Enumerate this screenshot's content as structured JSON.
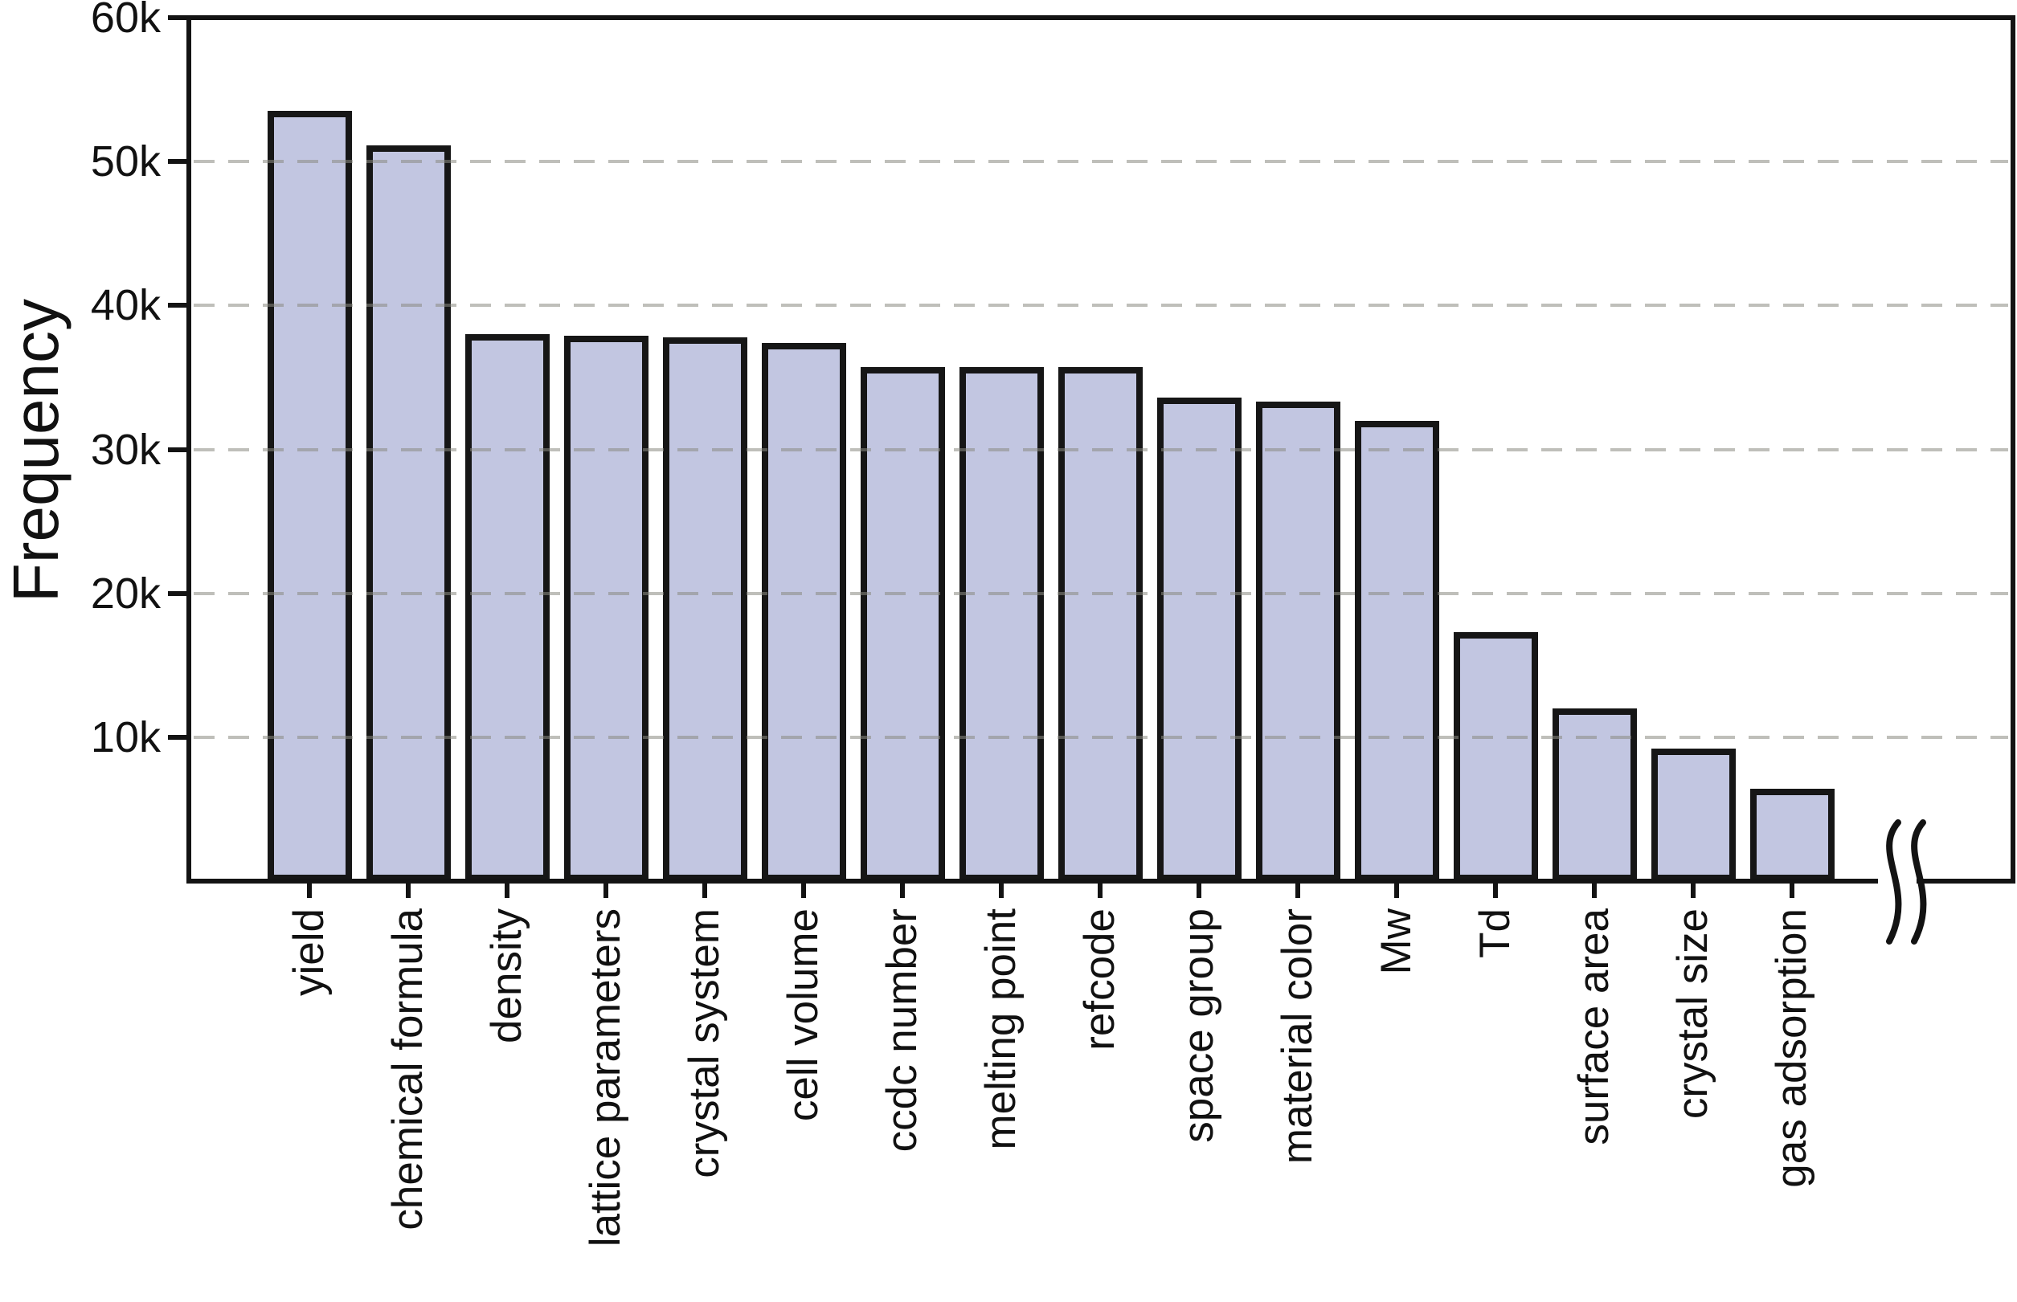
{
  "chart_data": {
    "type": "bar",
    "title": "",
    "xlabel": "",
    "ylabel": "Frequency",
    "ylim": [
      0,
      60000
    ],
    "ytick_step": 10000,
    "yticks": [
      {
        "value": 60000,
        "label": "60k"
      },
      {
        "value": 50000,
        "label": "50k"
      },
      {
        "value": 40000,
        "label": "40k"
      },
      {
        "value": 30000,
        "label": "30k"
      },
      {
        "value": 20000,
        "label": "20k"
      },
      {
        "value": 10000,
        "label": "10k"
      }
    ],
    "grid": "horizontal-dashed",
    "legend": "none",
    "bar_orientation": "vertical",
    "x_axis_break_after_last_bar": true,
    "categories": [
      "yield",
      "chemical formula",
      "density",
      "lattice parameters",
      "crystal system",
      "cell volume",
      "ccdc number",
      "melting point",
      "refcode",
      "space group",
      "material color",
      "Mw",
      "Td",
      "surface area",
      "crystal size",
      "gas adsorption"
    ],
    "values": [
      53500,
      51100,
      38000,
      37900,
      37800,
      37400,
      35700,
      35700,
      35700,
      33600,
      33300,
      32000,
      17300,
      12000,
      9200,
      6400
    ]
  },
  "colors": {
    "background": "#ffffff",
    "bar_fill": "#c2c6e1",
    "bar_outline": "#161616",
    "axis": "#131313",
    "gridline": "#8a8a82",
    "text": "#111111"
  },
  "icons": {
    "axis_break": "axis-break-squiggle-icon"
  }
}
